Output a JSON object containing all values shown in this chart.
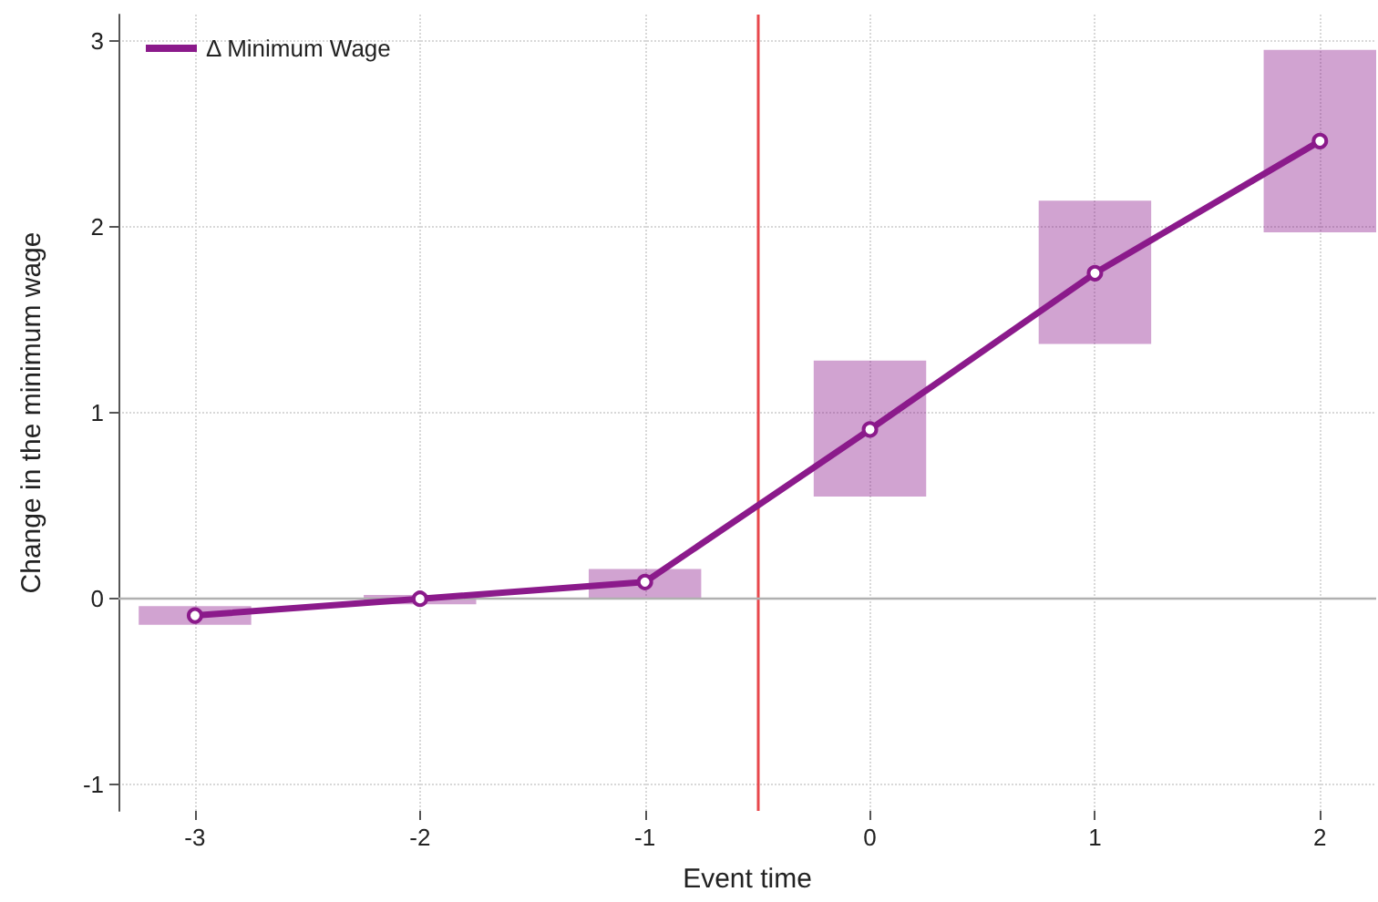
{
  "chart_data": {
    "type": "line",
    "xlabel": "Event time",
    "ylabel": "Change in the minimum wage",
    "x": [
      -3,
      -2,
      -1,
      0,
      1,
      2
    ],
    "series": [
      {
        "name": "Δ Minimum Wage",
        "color": "#8b1a8b",
        "values": [
          -0.09,
          0,
          0.09,
          0.91,
          1.75,
          2.46
        ],
        "errors": [
          [
            -0.14,
            -0.04
          ],
          [
            -0.03,
            0.02
          ],
          [
            0,
            0.16
          ],
          [
            0.55,
            1.28
          ],
          [
            1.37,
            2.14
          ],
          [
            1.97,
            2.95
          ]
        ]
      }
    ],
    "xlim": [
      -3.34,
      2.25
    ],
    "xticks": [
      -3,
      -2,
      -1,
      0,
      1,
      2
    ],
    "ylim": [
      -1.14,
      3.14
    ],
    "yticks": [
      -1,
      0,
      1,
      2,
      3
    ],
    "ref_lines": [
      {
        "axis": "x",
        "value": -0.5,
        "color": "#e8474c"
      },
      {
        "axis": "y",
        "value": 0,
        "color": "#b0b0b0"
      }
    ],
    "grid": true,
    "legend": "top left",
    "marker": "circle",
    "line_style": "solid"
  }
}
